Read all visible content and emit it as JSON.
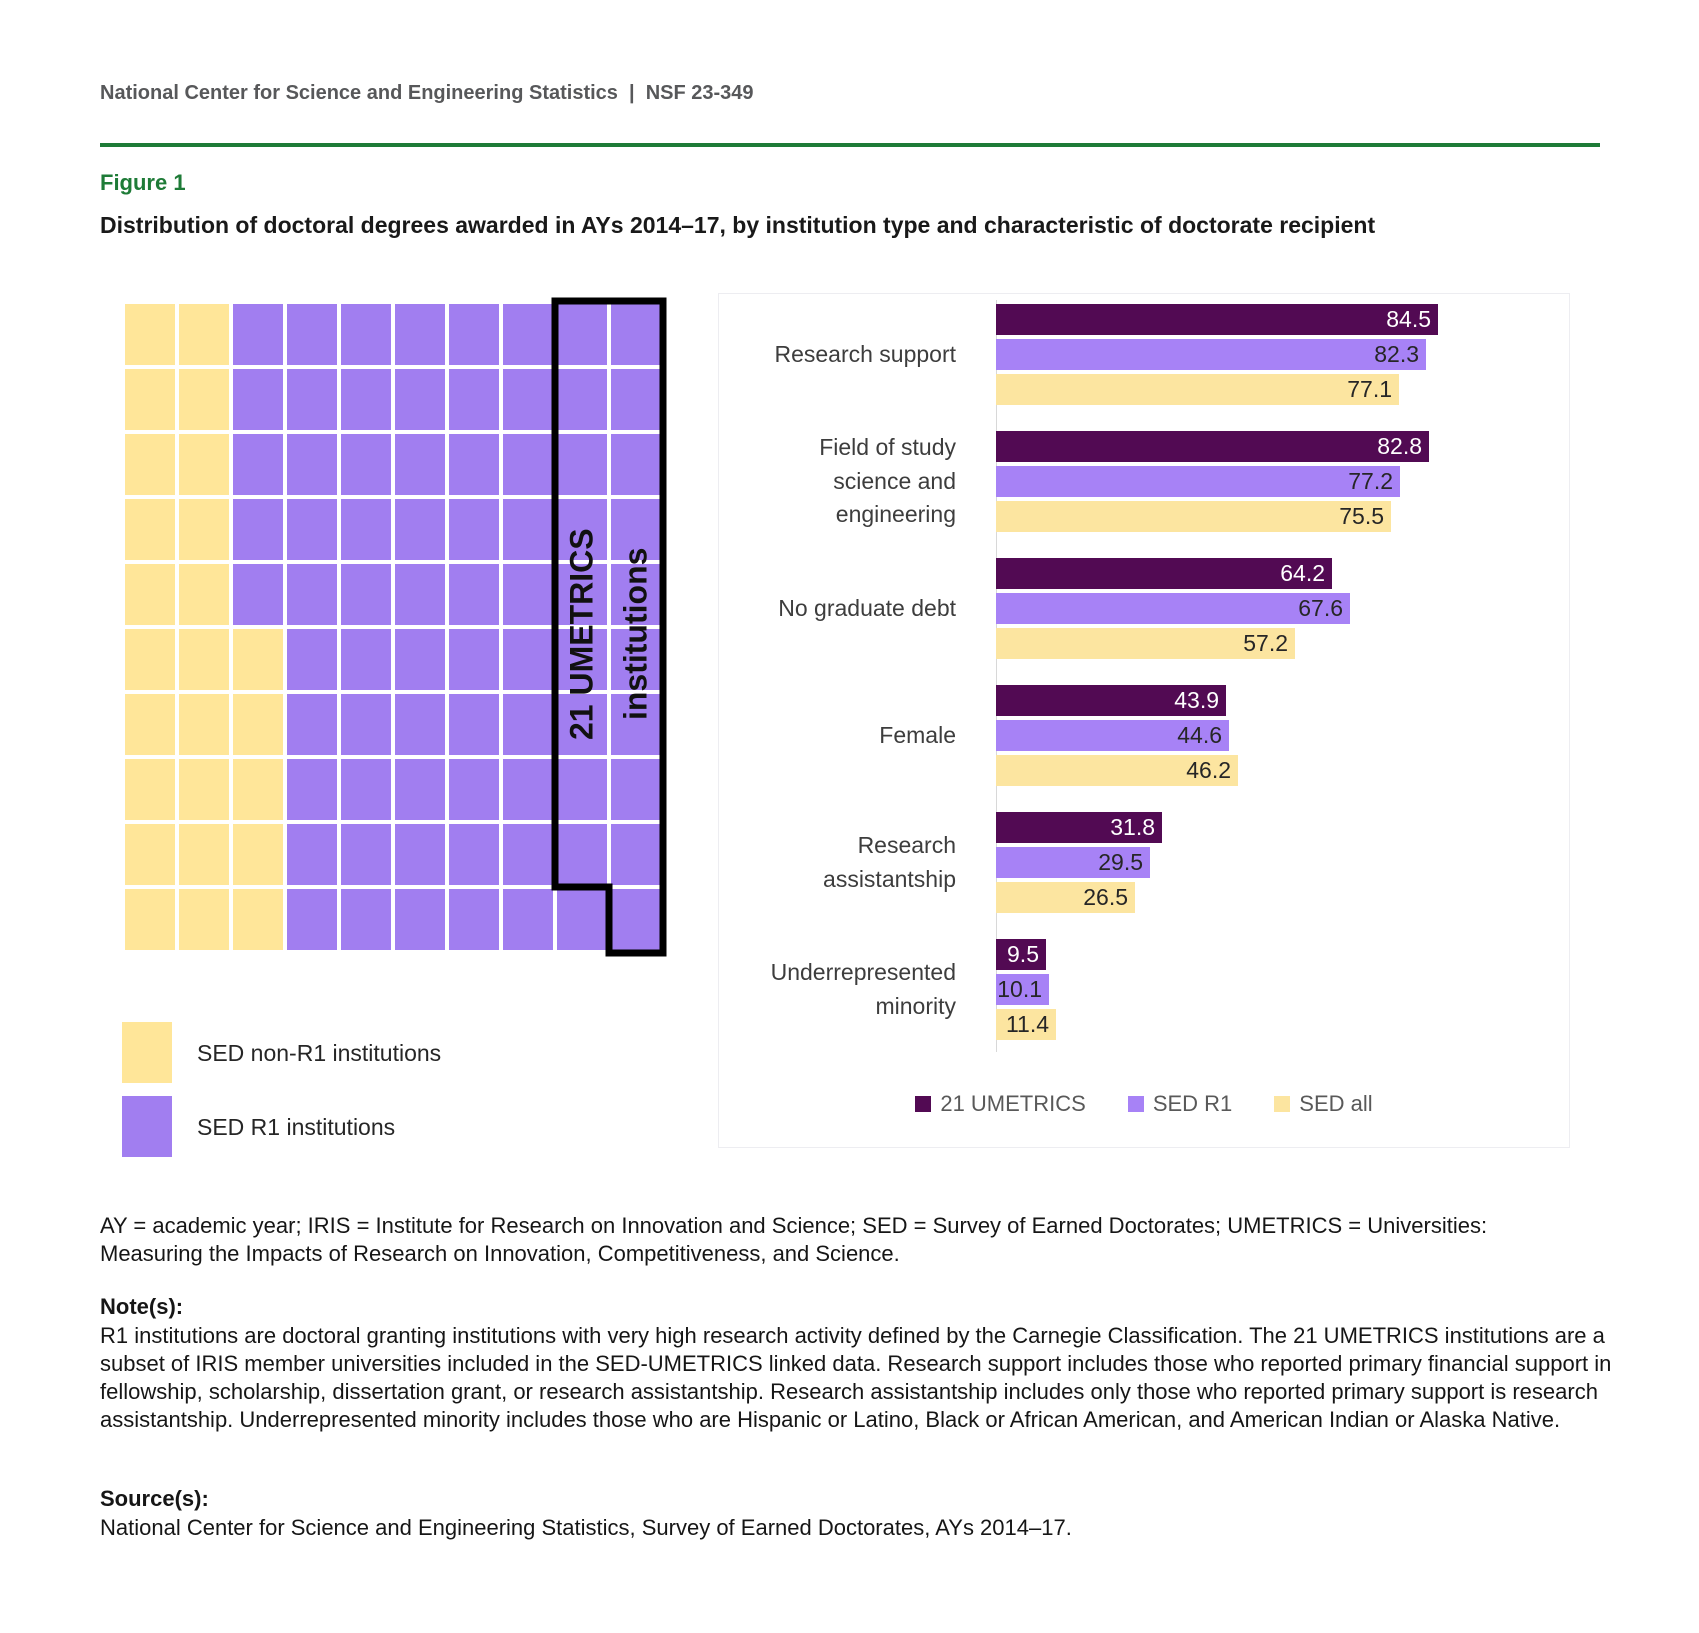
{
  "header": {
    "text": "National Center for Science and Engineering Statistics  |  NSF 23-349"
  },
  "figure": {
    "label": "Figure 1",
    "title": "Distribution of doctoral degrees awarded in AYs 2014–17, by institution type and characteristic of doctorate recipient"
  },
  "colors": {
    "accent_green": "#1E7B37",
    "header_gray": "#57585A",
    "dark_purple": "#520A53",
    "light_purple": "#A782F6",
    "bar_yellow": "#FCE5A0",
    "waffle_yellow": "#FFE699",
    "waffle_purple": "#A17EF0"
  },
  "chart_data": [
    {
      "type": "waffle",
      "title": "Share of doctoral degrees by institution type",
      "rows": 10,
      "cols": 10,
      "row_yellow_counts": [
        2,
        2,
        2,
        2,
        2,
        3,
        3,
        3,
        3,
        3
      ],
      "colors": {
        "non_r1": "#FFE699",
        "r1": "#A17EF0"
      },
      "annotation": {
        "line1": "21 UMETRICS",
        "line2": "institutions"
      },
      "outline_region": "columns 9-10 of rows 1-9 plus column 10 of row 10 (19 squares) outlined in black",
      "legend": [
        {
          "label": "SED non-R1 institutions",
          "color": "#FFE699"
        },
        {
          "label": "SED R1 institutions",
          "color": "#A17EF0"
        }
      ]
    },
    {
      "type": "bar",
      "orientation": "horizontal",
      "categories": [
        "Research support",
        "Field of study\nscience and engineering",
        "No graduate debt",
        "Female",
        "Research assistantship",
        "Underrepresented minority"
      ],
      "series": [
        {
          "name": "21 UMETRICS",
          "color": "#520A53",
          "values": [
            84.5,
            82.8,
            64.2,
            43.9,
            31.8,
            9.5
          ]
        },
        {
          "name": "SED R1",
          "color": "#A782F6",
          "values": [
            82.3,
            77.2,
            67.6,
            44.6,
            29.5,
            10.1
          ]
        },
        {
          "name": "SED all",
          "color": "#FCE5A0",
          "values": [
            77.1,
            75.5,
            57.2,
            46.2,
            26.5,
            11.4
          ]
        }
      ],
      "xlim": [
        0,
        100
      ],
      "value_labels": "inside-end",
      "grid": false,
      "legend_position": "bottom"
    }
  ],
  "footnotes": {
    "abbreviations": "AY = academic year; IRIS = Institute for Research on Innovation and Science; SED = Survey of Earned Doctorates; UMETRICS = Universities: Measuring the Impacts of Research on Innovation, Competitiveness, and Science.",
    "notes_heading": "Note(s):",
    "notes": "R1 institutions are doctoral granting institutions with very high research activity defined by the Carnegie Classification. The 21 UMETRICS institutions are a subset of IRIS member universities included in the SED-UMETRICS linked data. Research support includes those who reported primary financial support in fellowship, scholarship, dissertation grant, or research assistantship. Research assistantship includes only those who reported primary support is research assistantship. Underrepresented minority includes those who are Hispanic or Latino, Black or African American, and American Indian or Alaska Native.",
    "source_heading": "Source(s):",
    "source": "National Center for Science and Engineering Statistics, Survey of Earned Doctorates, AYs 2014–17."
  }
}
